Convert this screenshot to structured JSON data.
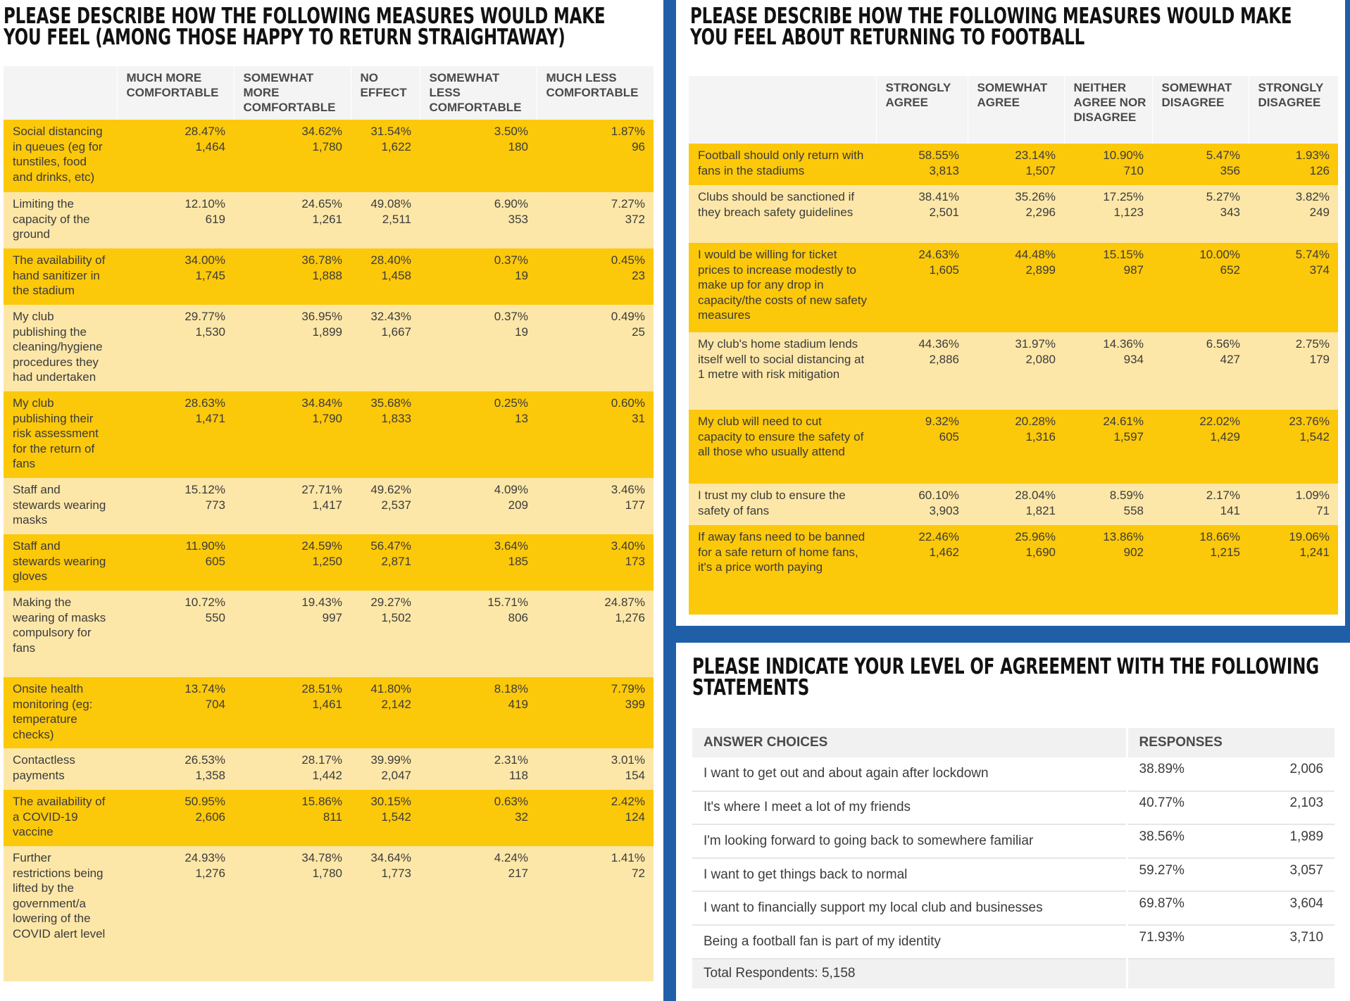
{
  "left_panel": {
    "title_line1": "PLEASE DESCRIBE HOW THE FOLLOWING MEASURES WOULD MAKE",
    "title_line2": "YOU FEEL (AMONG THOSE HAPPY TO RETURN STRAIGHTAWAY)",
    "columns": [
      "MUCH MORE COMFORTABLE",
      "SOMEWHAT MORE COMFORTABLE",
      "NO EFFECT",
      "SOMEWHAT LESS COMFORTABLE",
      "MUCH LESS COMFORTABLE"
    ],
    "rows": [
      {
        "label": "Social distancing in queues (eg for tunstiles, food and drinks, etc)",
        "cells": [
          [
            "28.47%",
            "1,464"
          ],
          [
            "34.62%",
            "1,780"
          ],
          [
            "31.54%",
            "1,622"
          ],
          [
            "3.50%",
            "180"
          ],
          [
            "1.87%",
            "96"
          ]
        ]
      },
      {
        "label": "Limiting the capacity of the ground",
        "cells": [
          [
            "12.10%",
            "619"
          ],
          [
            "24.65%",
            "1,261"
          ],
          [
            "49.08%",
            "2,511"
          ],
          [
            "6.90%",
            "353"
          ],
          [
            "7.27%",
            "372"
          ]
        ]
      },
      {
        "label": "The availability of hand sanitizer in the stadium",
        "cells": [
          [
            "34.00%",
            "1,745"
          ],
          [
            "36.78%",
            "1,888"
          ],
          [
            "28.40%",
            "1,458"
          ],
          [
            "0.37%",
            "19"
          ],
          [
            "0.45%",
            "23"
          ]
        ]
      },
      {
        "label": "My club publishing the cleaning/hygiene procedures they had undertaken",
        "cells": [
          [
            "29.77%",
            "1,530"
          ],
          [
            "36.95%",
            "1,899"
          ],
          [
            "32.43%",
            "1,667"
          ],
          [
            "0.37%",
            "19"
          ],
          [
            "0.49%",
            "25"
          ]
        ]
      },
      {
        "label": "My club publishing their risk assessment for the return of fans",
        "cells": [
          [
            "28.63%",
            "1,471"
          ],
          [
            "34.84%",
            "1,790"
          ],
          [
            "35.68%",
            "1,833"
          ],
          [
            "0.25%",
            "13"
          ],
          [
            "0.60%",
            "31"
          ]
        ]
      },
      {
        "label": "Staff and stewards wearing masks",
        "cells": [
          [
            "15.12%",
            "773"
          ],
          [
            "27.71%",
            "1,417"
          ],
          [
            "49.62%",
            "2,537"
          ],
          [
            "4.09%",
            "209"
          ],
          [
            "3.46%",
            "177"
          ]
        ]
      },
      {
        "label": "Staff and stewards wearing gloves",
        "cells": [
          [
            "11.90%",
            "605"
          ],
          [
            "24.59%",
            "1,250"
          ],
          [
            "56.47%",
            "2,871"
          ],
          [
            "3.64%",
            "185"
          ],
          [
            "3.40%",
            "173"
          ]
        ]
      },
      {
        "label": "Making the wearing of masks compulsory for fans",
        "cells": [
          [
            "10.72%",
            "550"
          ],
          [
            "19.43%",
            "997"
          ],
          [
            "29.27%",
            "1,502"
          ],
          [
            "15.71%",
            "806"
          ],
          [
            "24.87%",
            "1,276"
          ]
        ]
      },
      {
        "label": "Onsite health monitoring (eg: temperature checks)",
        "cells": [
          [
            "13.74%",
            "704"
          ],
          [
            "28.51%",
            "1,461"
          ],
          [
            "41.80%",
            "2,142"
          ],
          [
            "8.18%",
            "419"
          ],
          [
            "7.79%",
            "399"
          ]
        ]
      },
      {
        "label": "Contactless payments",
        "cells": [
          [
            "26.53%",
            "1,358"
          ],
          [
            "28.17%",
            "1,442"
          ],
          [
            "39.99%",
            "2,047"
          ],
          [
            "2.31%",
            "118"
          ],
          [
            "3.01%",
            "154"
          ]
        ]
      },
      {
        "label": "The availability of a COVID-19 vaccine",
        "cells": [
          [
            "50.95%",
            "2,606"
          ],
          [
            "15.86%",
            "811"
          ],
          [
            "30.15%",
            "1,542"
          ],
          [
            "0.63%",
            "32"
          ],
          [
            "2.42%",
            "124"
          ]
        ]
      },
      {
        "label": "Further restrictions being lifted by the government/a lowering of the COVID alert level",
        "cells": [
          [
            "24.93%",
            "1,276"
          ],
          [
            "34.78%",
            "1,780"
          ],
          [
            "34.64%",
            "1,773"
          ],
          [
            "4.24%",
            "217"
          ],
          [
            "1.41%",
            "72"
          ]
        ]
      }
    ]
  },
  "right_top_panel": {
    "title_line1": "PLEASE DESCRIBE HOW THE FOLLOWING MEASURES WOULD MAKE",
    "title_line2": "YOU FEEL ABOUT RETURNING TO FOOTBALL",
    "columns": [
      "STRONGLY AGREE",
      "SOMEWHAT AGREE",
      "NEITHER AGREE NOR DISAGREE",
      "SOMEWHAT DISAGREE",
      "STRONGLY DISAGREE"
    ],
    "rows": [
      {
        "label": "Football should only return with fans in the stadiums",
        "cells": [
          [
            "58.55%",
            "3,813"
          ],
          [
            "23.14%",
            "1,507"
          ],
          [
            "10.90%",
            "710"
          ],
          [
            "5.47%",
            "356"
          ],
          [
            "1.93%",
            "126"
          ]
        ]
      },
      {
        "label": "Clubs should be sanctioned if they breach safety guidelines",
        "cells": [
          [
            "38.41%",
            "2,501"
          ],
          [
            "35.26%",
            "2,296"
          ],
          [
            "17.25%",
            "1,123"
          ],
          [
            "5.27%",
            "343"
          ],
          [
            "3.82%",
            "249"
          ]
        ]
      },
      {
        "label": "I would be willing for ticket prices to increase modestly to make up for any drop in capacity/the costs of new safety measures",
        "cells": [
          [
            "24.63%",
            "1,605"
          ],
          [
            "44.48%",
            "2,899"
          ],
          [
            "15.15%",
            "987"
          ],
          [
            "10.00%",
            "652"
          ],
          [
            "5.74%",
            "374"
          ]
        ]
      },
      {
        "label": "My club's home stadium lends itself well to social distancing at 1 metre with risk mitigation",
        "cells": [
          [
            "44.36%",
            "2,886"
          ],
          [
            "31.97%",
            "2,080"
          ],
          [
            "14.36%",
            "934"
          ],
          [
            "6.56%",
            "427"
          ],
          [
            "2.75%",
            "179"
          ]
        ]
      },
      {
        "label": "My club will need to cut capacity to ensure the safety of all those who usually attend",
        "cells": [
          [
            "9.32%",
            "605"
          ],
          [
            "20.28%",
            "1,316"
          ],
          [
            "24.61%",
            "1,597"
          ],
          [
            "22.02%",
            "1,429"
          ],
          [
            "23.76%",
            "1,542"
          ]
        ]
      },
      {
        "label": "I trust my club to ensure the safety of fans",
        "cells": [
          [
            "60.10%",
            "3,903"
          ],
          [
            "28.04%",
            "1,821"
          ],
          [
            "8.59%",
            "558"
          ],
          [
            "2.17%",
            "141"
          ],
          [
            "1.09%",
            "71"
          ]
        ]
      },
      {
        "label": "If away fans need to be banned for a safe return of home fans, it's a price worth paying",
        "cells": [
          [
            "22.46%",
            "1,462"
          ],
          [
            "25.96%",
            "1,690"
          ],
          [
            "13.86%",
            "902"
          ],
          [
            "18.66%",
            "1,215"
          ],
          [
            "19.06%",
            "1,241"
          ]
        ]
      }
    ]
  },
  "right_bottom_panel": {
    "title_line1": "PLEASE INDICATE YOUR LEVEL OF AGREEMENT WITH THE FOLLOWING",
    "title_line2": "STATEMENTS",
    "header_choices": "ANSWER CHOICES",
    "header_responses": "RESPONSES",
    "rows": [
      {
        "choice": "I want to get out and about again after lockdown",
        "pct": "38.89%",
        "count": "2,006"
      },
      {
        "choice": "It's where I meet a lot of my friends",
        "pct": "40.77%",
        "count": "2,103"
      },
      {
        "choice": "I'm looking forward to going back to somewhere familiar",
        "pct": "38.56%",
        "count": "1,989"
      },
      {
        "choice": "I want to get things back to normal",
        "pct": "59.27%",
        "count": "3,057"
      },
      {
        "choice": "I want to financially support my local club and businesses",
        "pct": "69.87%",
        "count": "3,604"
      },
      {
        "choice": "Being a football fan is part of my identity",
        "pct": "71.93%",
        "count": "3,710"
      }
    ],
    "total": "Total Respondents: 5,158"
  },
  "colors": {
    "yellow_dark": "#fcc80a",
    "yellow_light": "#fde7a8",
    "blue_divider": "#1f5fa8"
  }
}
